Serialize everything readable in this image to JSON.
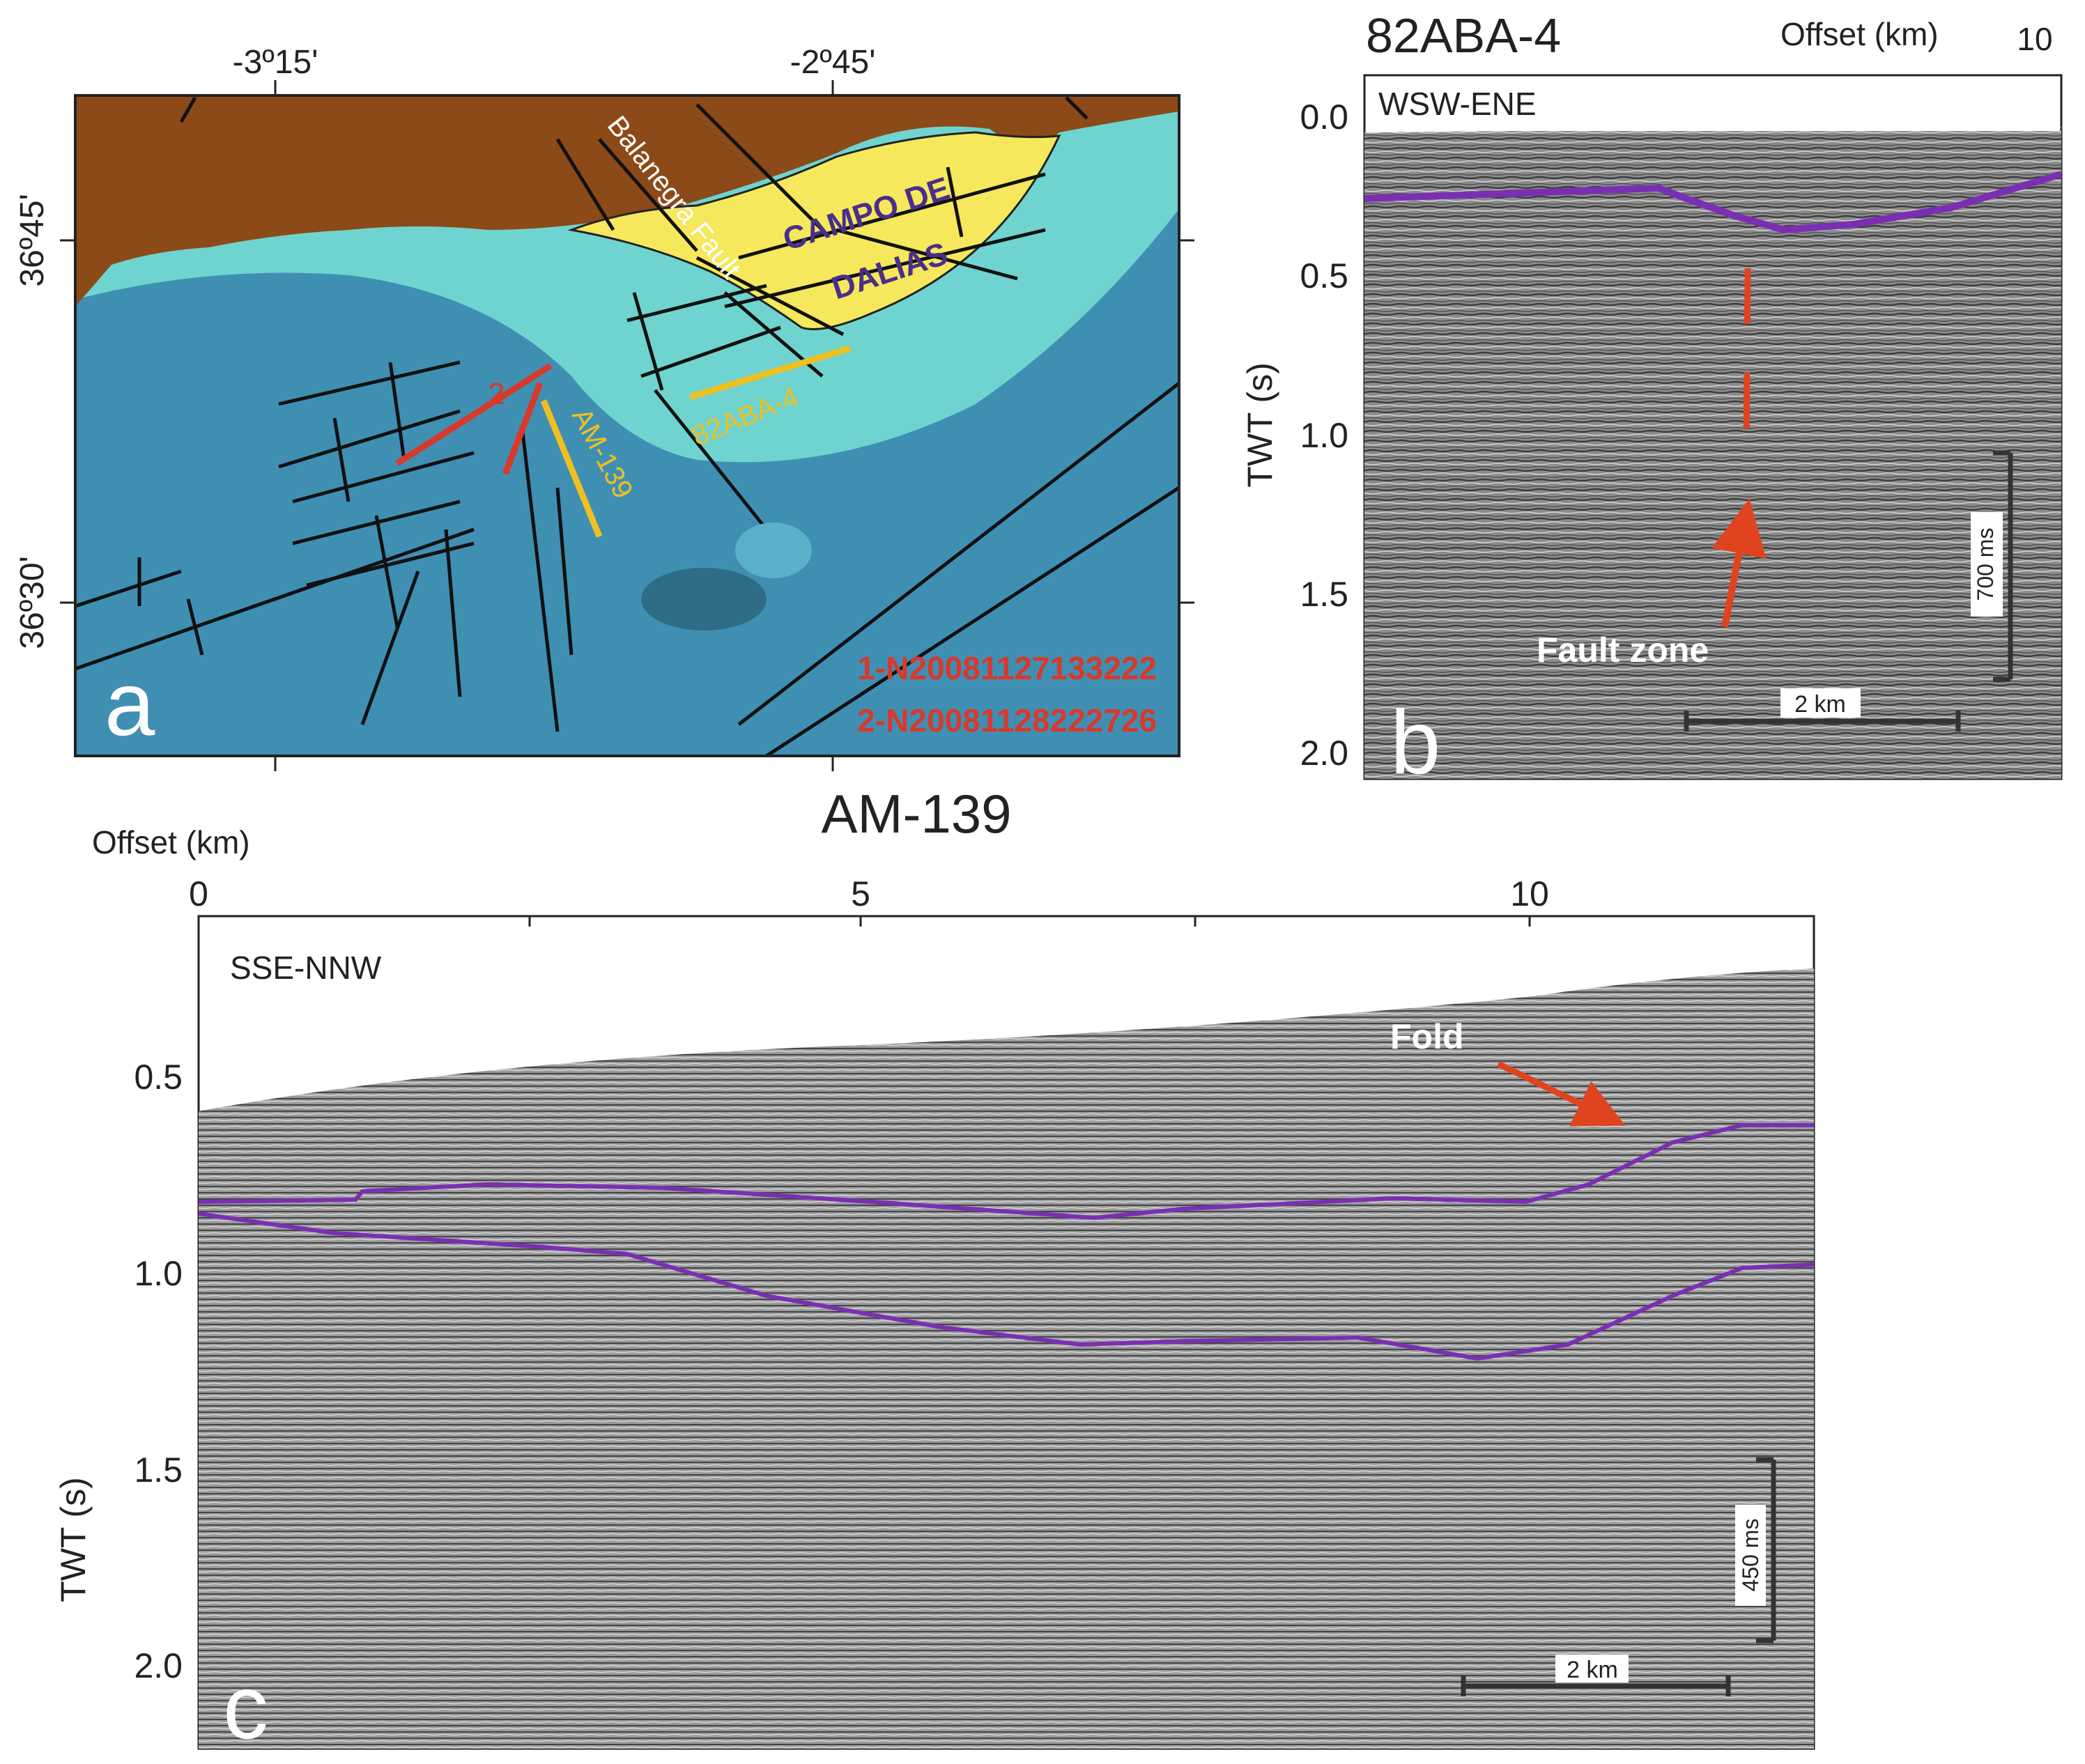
{
  "panel_a": {
    "letter": "a",
    "lon_labels": [
      "-3º15'",
      "-2º45'"
    ],
    "lat_labels": [
      "36º45'",
      "36º30'"
    ],
    "place_label": [
      "CAMPO DE",
      "DALIAS"
    ],
    "fault_label": "Balanegra Fault",
    "profile_labels": [
      "82ABA-4",
      "AM-139"
    ],
    "event_marker": "2",
    "event_ids": [
      "1-N20081127133222",
      "2-N20081128222726"
    ],
    "colors": {
      "land": "#8b4a17",
      "campo": "#f5e85c",
      "shelf": "#6fd4cf",
      "deep": "#3f8fb3",
      "profile": "#f0c020",
      "event": "#d8392b",
      "place_text": "#4a2f8a"
    }
  },
  "panel_b": {
    "letter": "b",
    "title": "82ABA-4",
    "offset_label": "Offset (km)",
    "offset_tick": "10",
    "direction": "WSW-ENE",
    "ylabel": "TWT (s)",
    "yticks": [
      "0.0",
      "0.5",
      "1.0",
      "1.5",
      "2.0"
    ],
    "scale_v": "700 ms",
    "scale_h": "2 km",
    "annotation": "Fault zone"
  },
  "panel_c": {
    "letter": "c",
    "title": "AM-139",
    "offset_label": "Offset (km)",
    "xticks": [
      "0",
      "5",
      "10"
    ],
    "direction": "SSE-NNW",
    "ylabel": "TWT (s)",
    "yticks": [
      "0.5",
      "1.0",
      "1.5",
      "2.0"
    ],
    "scale_v": "450 ms",
    "scale_h": "2 km",
    "annotation": "Fold"
  },
  "colors": {
    "horizon": "#7a2fb3",
    "arrow": "#e0441f",
    "seismic_bg": "#8a8a8a"
  }
}
